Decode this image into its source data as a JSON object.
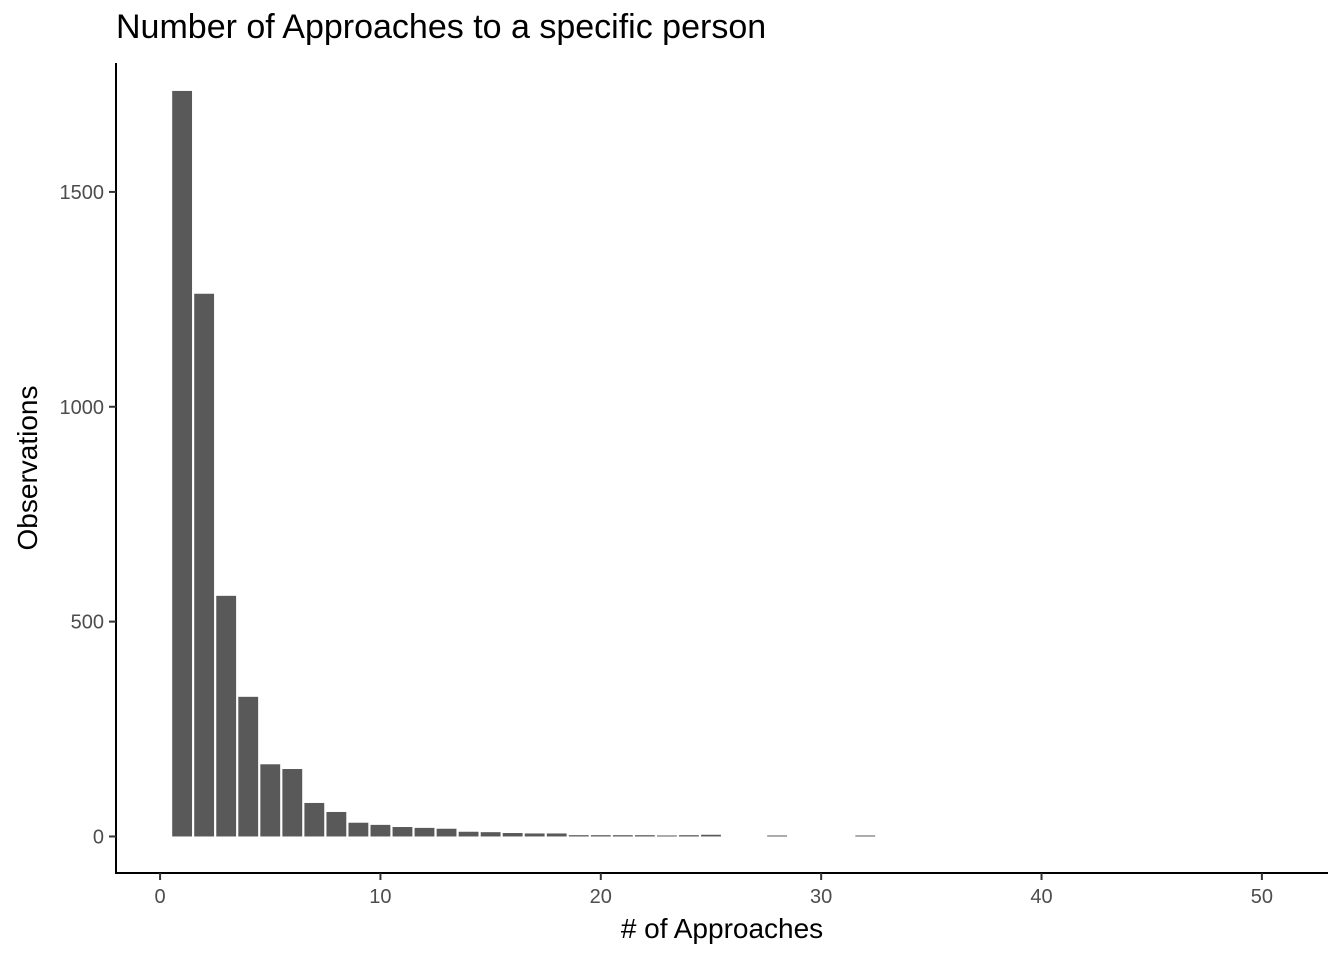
{
  "chart_data": {
    "type": "bar",
    "title": "Number of Approaches to a specific person",
    "xlabel": "# of Approaches",
    "ylabel": "Observations",
    "xlim": [
      -2,
      53
    ],
    "ylim": [
      -85,
      1800
    ],
    "x_ticks": [
      0,
      10,
      20,
      30,
      40,
      50
    ],
    "y_ticks": [
      0,
      500,
      1000,
      1500
    ],
    "grid": false,
    "bar_color": "#595959",
    "bars": [
      {
        "x": 1,
        "y": 1735
      },
      {
        "x": 2,
        "y": 1263
      },
      {
        "x": 3,
        "y": 560
      },
      {
        "x": 4,
        "y": 325
      },
      {
        "x": 5,
        "y": 168
      },
      {
        "x": 6,
        "y": 157
      },
      {
        "x": 7,
        "y": 78
      },
      {
        "x": 8,
        "y": 57
      },
      {
        "x": 9,
        "y": 32
      },
      {
        "x": 10,
        "y": 27
      },
      {
        "x": 11,
        "y": 22
      },
      {
        "x": 12,
        "y": 20
      },
      {
        "x": 13,
        "y": 18
      },
      {
        "x": 14,
        "y": 11
      },
      {
        "x": 15,
        "y": 10
      },
      {
        "x": 16,
        "y": 8
      },
      {
        "x": 17,
        "y": 7
      },
      {
        "x": 18,
        "y": 7
      },
      {
        "x": 19,
        "y": 3
      },
      {
        "x": 20,
        "y": 3
      },
      {
        "x": 21,
        "y": 3
      },
      {
        "x": 22,
        "y": 3
      },
      {
        "x": 23,
        "y": 2
      },
      {
        "x": 24,
        "y": 3
      },
      {
        "x": 25,
        "y": 4
      },
      {
        "x": 28,
        "y": 1
      },
      {
        "x": 32,
        "y": 1
      }
    ]
  }
}
